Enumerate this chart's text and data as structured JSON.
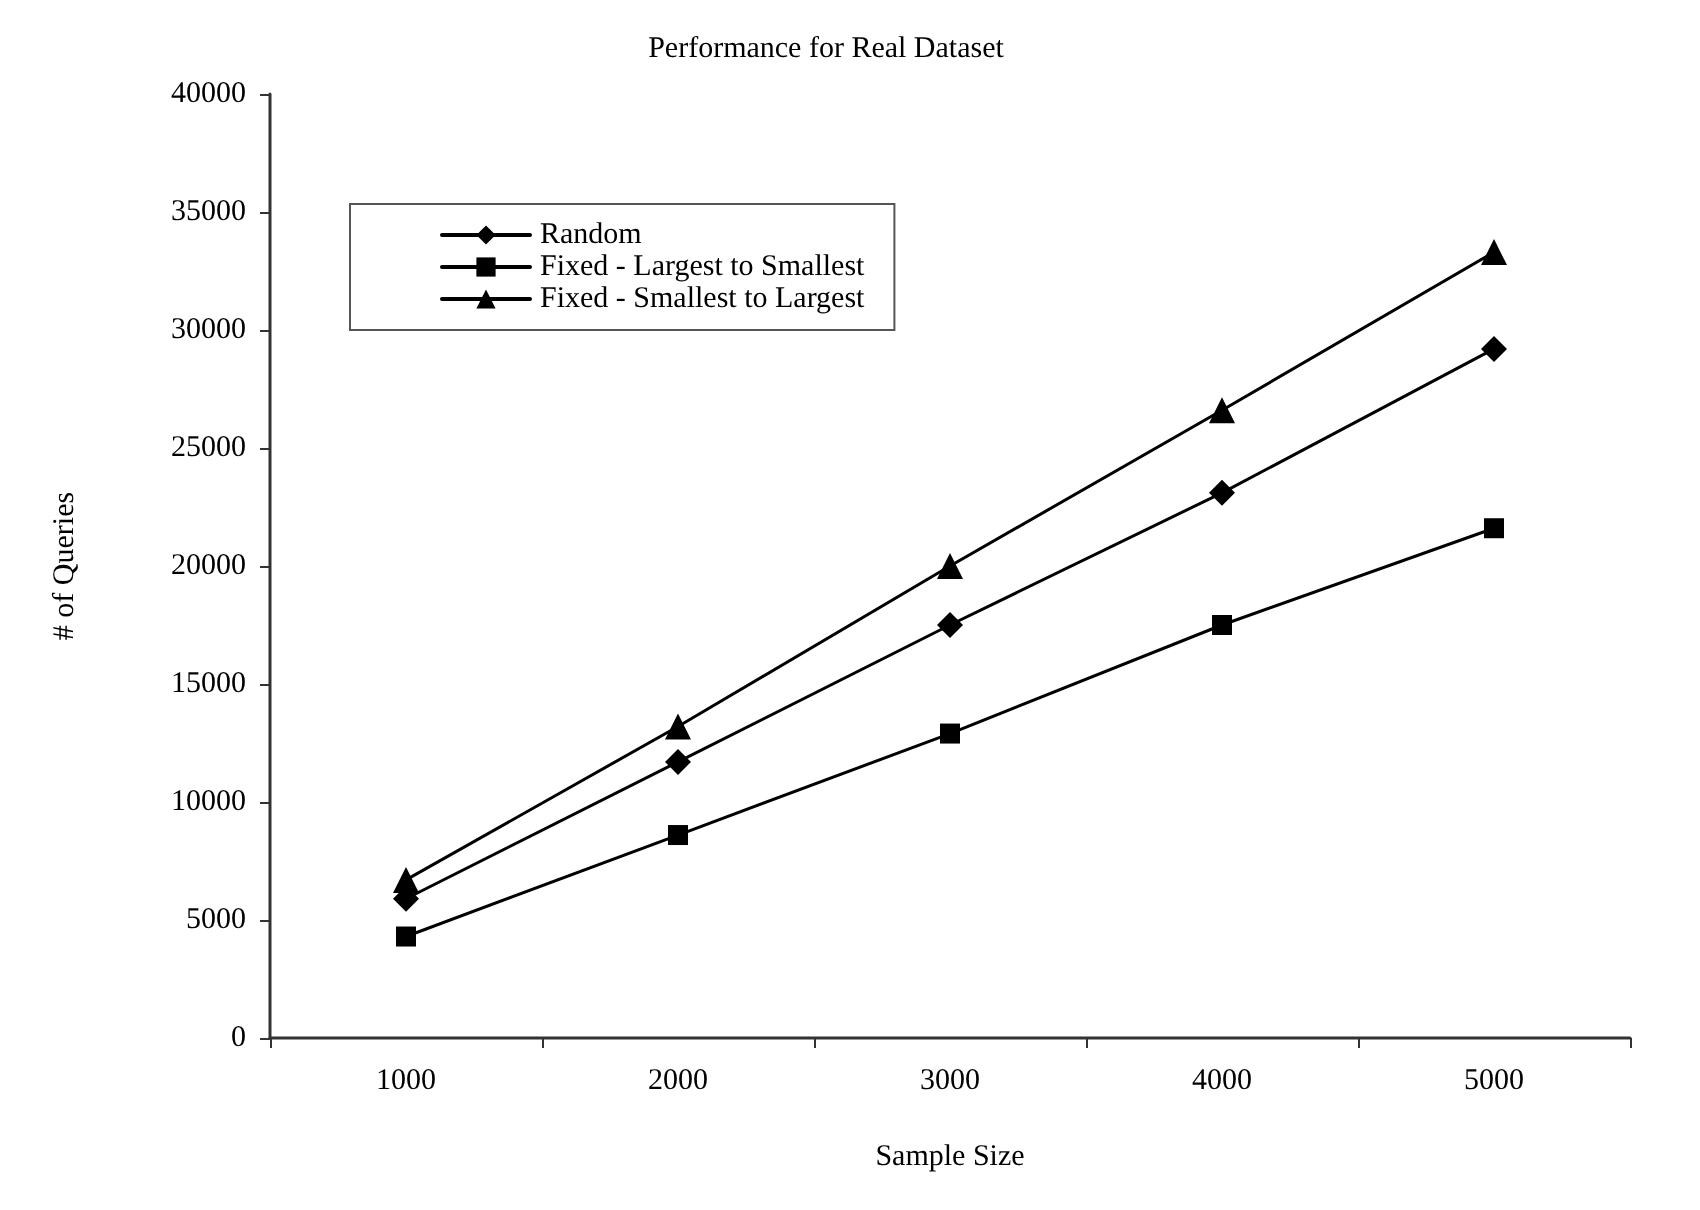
{
  "chart_data": {
    "type": "line",
    "title": "Performance for Real Dataset",
    "xlabel": "Sample Size",
    "ylabel": "# of Queries",
    "categories": [
      "1000",
      "2000",
      "3000",
      "4000",
      "5000"
    ],
    "series": [
      {
        "name": "Random",
        "color": "#000000",
        "marker": "diamond",
        "values": [
          5900,
          11700,
          17500,
          23100,
          29200
        ]
      },
      {
        "name": "Fixed - Largest to Smallest",
        "color": "#000000",
        "marker": "square",
        "values": [
          4300,
          8600,
          12900,
          17500,
          21600
        ]
      },
      {
        "name": "Fixed - Smallest to Largest",
        "color": "#000000",
        "marker": "triangle",
        "values": [
          6700,
          13200,
          20000,
          26600,
          33300
        ]
      }
    ],
    "ylim": [
      0,
      40000
    ],
    "yticks": [
      0,
      5000,
      10000,
      15000,
      20000,
      25000,
      30000,
      35000,
      40000
    ],
    "grid": false,
    "legend": "top left",
    "line_style": "solid"
  }
}
